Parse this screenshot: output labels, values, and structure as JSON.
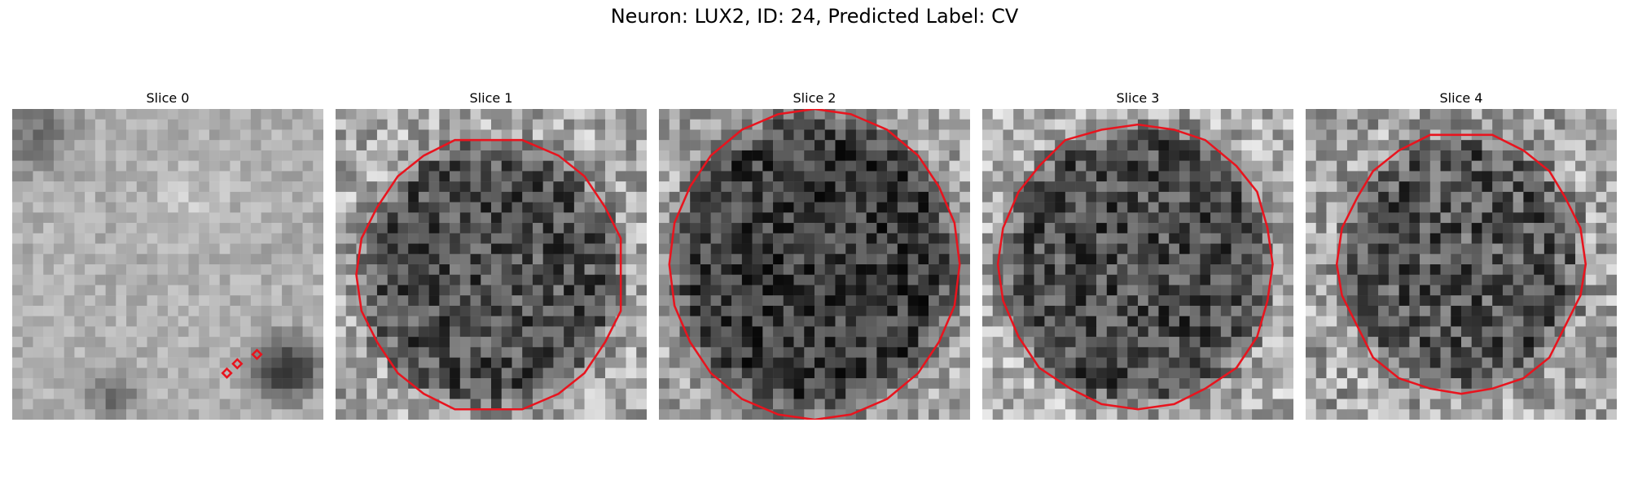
{
  "figure": {
    "title": "Neuron: LUX2, ID: 24, Predicted Label: CV"
  },
  "colors": {
    "contour": "#e8141e",
    "background": "#ffffff"
  },
  "panels": [
    {
      "title": "Slice 0",
      "seed": 11,
      "mask": "small-seeds"
    },
    {
      "title": "Slice 1",
      "seed": 23,
      "mask": "cell"
    },
    {
      "title": "Slice 2",
      "seed": 37,
      "mask": "cell"
    },
    {
      "title": "Slice 3",
      "seed": 41,
      "mask": "cell"
    },
    {
      "title": "Slice 4",
      "seed": 53,
      "mask": "cell"
    }
  ]
}
